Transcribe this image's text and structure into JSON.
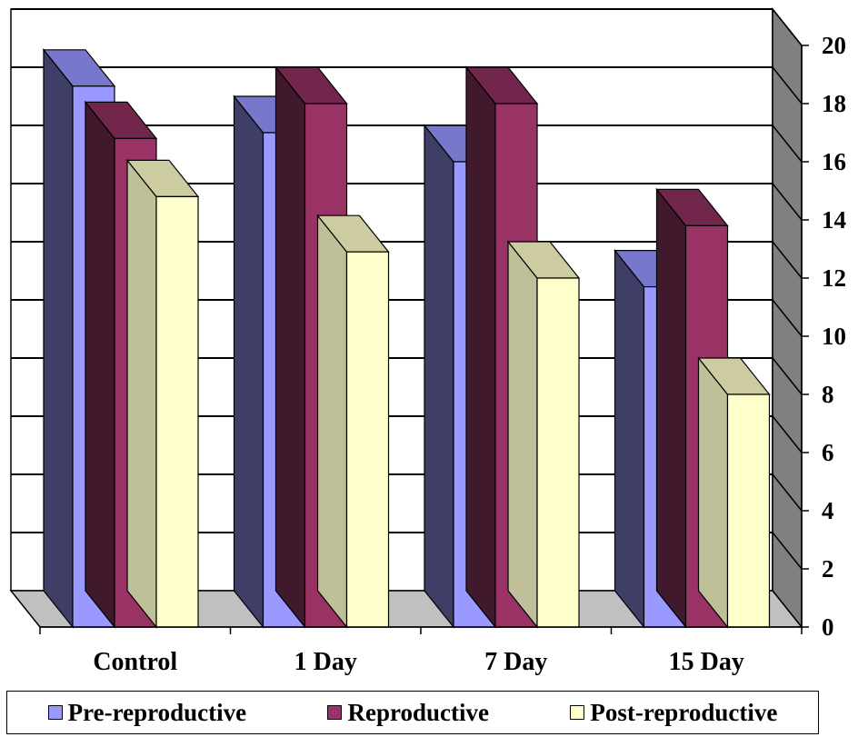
{
  "chart_data": {
    "type": "bar",
    "categories": [
      "Control",
      "1 Day",
      "7 Day",
      "15 Day"
    ],
    "series": [
      {
        "name": "Pre-reproductive",
        "values": [
          18.6,
          17.0,
          16.0,
          11.7
        ],
        "color": "#9999ff",
        "side_color": "#3e3e66",
        "top_color": "#7777cc"
      },
      {
        "name": "Reproductive",
        "values": [
          16.8,
          18.0,
          18.0,
          13.8
        ],
        "color": "#993366",
        "side_color": "#401a2c",
        "top_color": "#73264c"
      },
      {
        "name": "Post-reproductive",
        "values": [
          14.8,
          12.9,
          12.0,
          8.0
        ],
        "color": "#ffffcc",
        "side_color": "#bfbf99",
        "top_color": "#cccca0"
      }
    ],
    "y_ticks": [
      "0",
      "2",
      "4",
      "6",
      "8",
      "10",
      "12",
      "14",
      "16",
      "18",
      "20"
    ],
    "ylim": [
      0,
      20
    ],
    "grid": true,
    "legend_position": "bottom",
    "wall_color": "#808080",
    "floor_color": "#c0c0c0"
  }
}
